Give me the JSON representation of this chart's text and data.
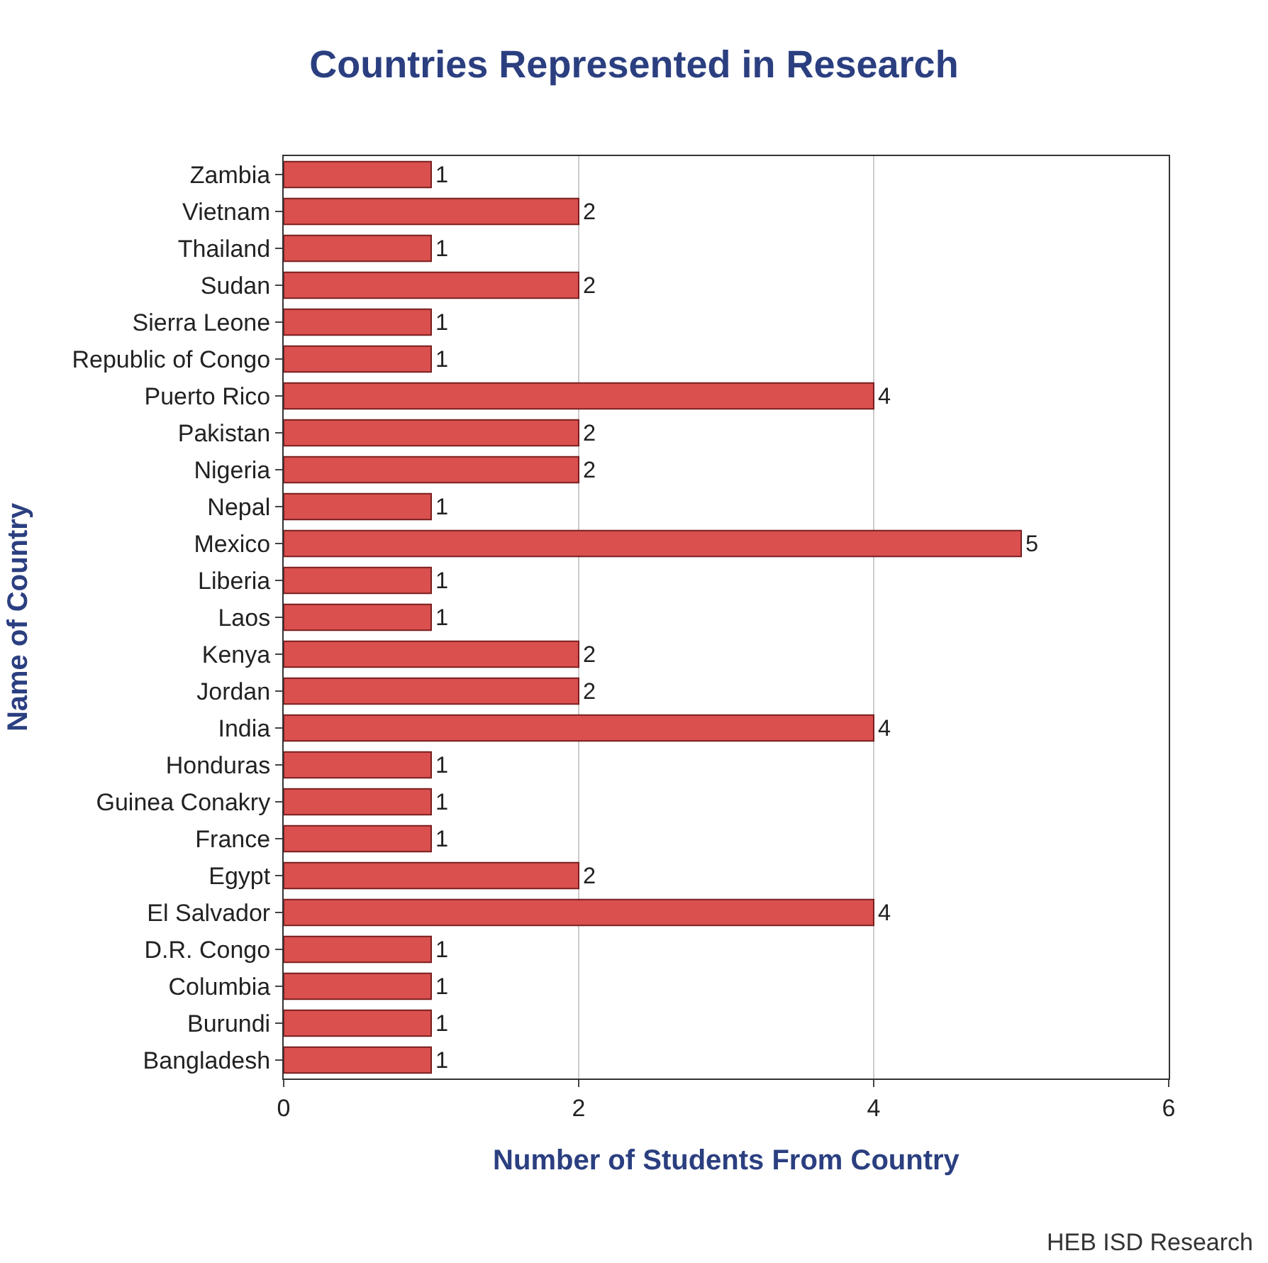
{
  "chart_data": {
    "type": "bar",
    "orientation": "horizontal",
    "title": "Countries Represented in Research",
    "xlabel": "Number of Students From Country",
    "ylabel": "Name of Country",
    "categories": [
      "Zambia",
      "Vietnam",
      "Thailand",
      "Sudan",
      "Sierra Leone",
      "Republic of Congo",
      "Puerto Rico",
      "Pakistan",
      "Nigeria",
      "Nepal",
      "Mexico",
      "Liberia",
      "Laos",
      "Kenya",
      "Jordan",
      "India",
      "Honduras",
      "Guinea Conakry",
      "France",
      "Egypt",
      "El Salvador",
      "D.R. Congo",
      "Columbia",
      "Burundi",
      "Bangladesh"
    ],
    "values": [
      1,
      2,
      1,
      2,
      1,
      1,
      4,
      2,
      2,
      1,
      5,
      1,
      1,
      2,
      2,
      4,
      1,
      1,
      1,
      2,
      4,
      1,
      1,
      1,
      1
    ],
    "color": "#d9504f",
    "data_labels": true,
    "xlim": [
      0,
      6
    ],
    "xticks": [
      0,
      2,
      4,
      6
    ],
    "grid": "x",
    "legend": false,
    "annotations": [
      "HEB ISD Research"
    ]
  }
}
